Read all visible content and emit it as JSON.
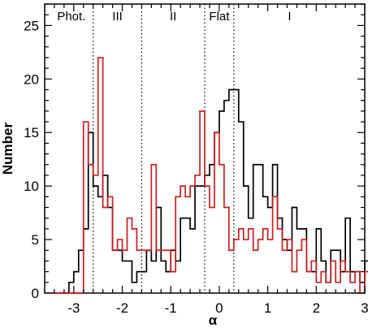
{
  "chart_data": {
    "type": "histogram",
    "xlabel": "α",
    "ylabel": "Number",
    "xlim": [
      -3.6,
      3.0
    ],
    "ylim": [
      0,
      27
    ],
    "xticks": [
      -3,
      -2,
      -1,
      0,
      1,
      2,
      3
    ],
    "yticks": [
      0,
      5,
      10,
      15,
      20,
      25
    ],
    "xtick_labels": [
      "-3",
      "-2",
      "-1",
      "0",
      "1",
      "2",
      "3"
    ],
    "ytick_labels": [
      "0",
      "5",
      "10",
      "15",
      "20",
      "25"
    ],
    "bin_width": 0.1,
    "grid": false,
    "region_boundaries": [
      -2.6,
      -1.6,
      -0.3,
      0.3
    ],
    "region_labels": [
      {
        "text": "Phot.",
        "x": -3.05
      },
      {
        "text": "III",
        "x": -2.1
      },
      {
        "text": "II",
        "x": -0.95
      },
      {
        "text": "Flat",
        "x": 0.0
      },
      {
        "text": "I",
        "x": 1.45
      }
    ],
    "series": [
      {
        "color": "#000000",
        "bin_start": -3.4,
        "values": [
          0,
          0,
          0,
          1,
          2,
          4,
          6,
          15,
          10,
          9,
          11,
          8,
          4,
          4,
          3,
          3,
          1,
          2,
          2,
          4,
          3,
          8,
          3,
          2,
          4,
          3,
          7,
          7,
          6,
          10,
          10,
          11,
          12,
          15,
          17,
          18,
          19,
          19,
          16,
          10,
          7,
          12,
          12,
          9,
          8,
          12,
          7,
          5,
          4,
          8,
          6,
          6,
          2,
          2,
          6,
          3,
          1,
          4,
          4,
          2,
          7,
          2,
          2,
          1,
          3,
          4,
          3,
          3,
          1,
          1,
          0,
          1,
          0,
          0
        ]
      },
      {
        "color": "#cc1f1f",
        "bin_start": -3.4,
        "values": [
          0,
          0,
          0,
          0,
          0,
          0,
          16,
          12,
          11,
          22,
          8,
          9,
          4,
          5,
          4,
          7,
          6,
          4,
          4,
          4,
          12,
          4,
          4,
          4,
          2,
          9,
          10,
          9,
          10,
          11,
          17,
          10,
          8,
          15,
          12,
          8,
          4,
          5,
          6,
          5,
          6,
          4,
          5,
          6,
          5,
          9,
          6,
          4,
          5,
          2,
          4,
          5,
          2,
          3,
          1,
          2,
          1,
          3,
          1,
          3,
          2,
          1,
          2,
          0,
          2,
          2,
          3,
          1,
          1,
          2,
          2,
          3,
          2,
          3
        ]
      }
    ]
  }
}
